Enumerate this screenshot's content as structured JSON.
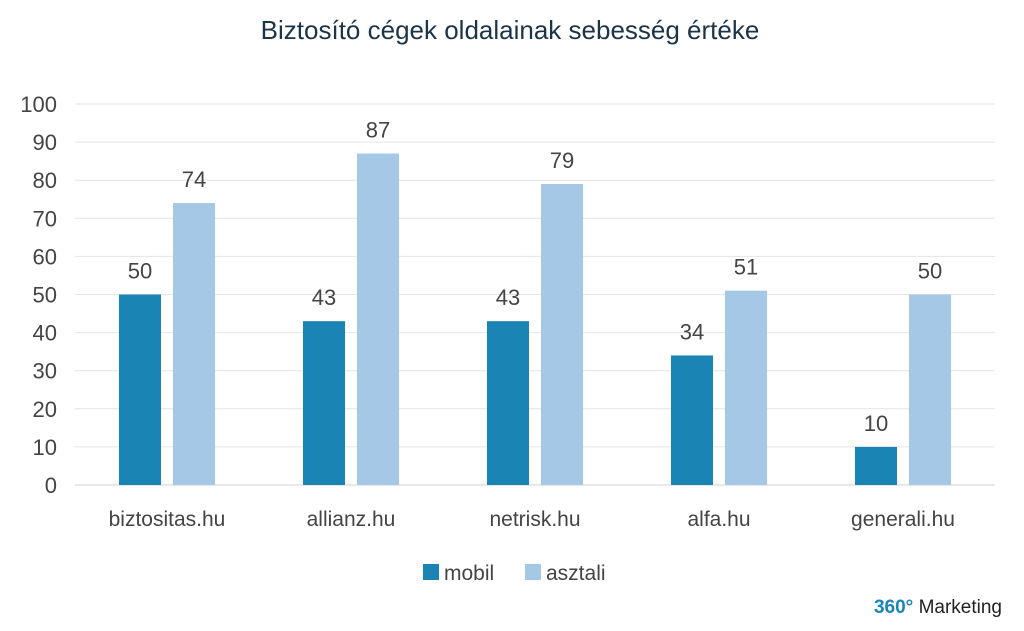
{
  "chart_data": {
    "type": "bar",
    "title": "Biztosító cégek oldalainak sebesség értéke",
    "categories": [
      "biztositas.hu",
      "allianz.hu",
      "netrisk.hu",
      "alfa.hu",
      "generali.hu"
    ],
    "series": [
      {
        "name": "mobil",
        "values": [
          50,
          43,
          43,
          34,
          10
        ],
        "color": "#1a84b5"
      },
      {
        "name": "asztali",
        "values": [
          74,
          87,
          79,
          51,
          50
        ],
        "color": "#a4c8e6"
      }
    ],
    "ylim": [
      0,
      100
    ],
    "yticks": [
      "0",
      "10",
      "20",
      "30",
      "40",
      "50",
      "60",
      "70",
      "80",
      "90",
      "100"
    ],
    "grid": true,
    "legend_position": "bottom"
  },
  "brand": {
    "number": "360°",
    "text": " Marketing"
  }
}
